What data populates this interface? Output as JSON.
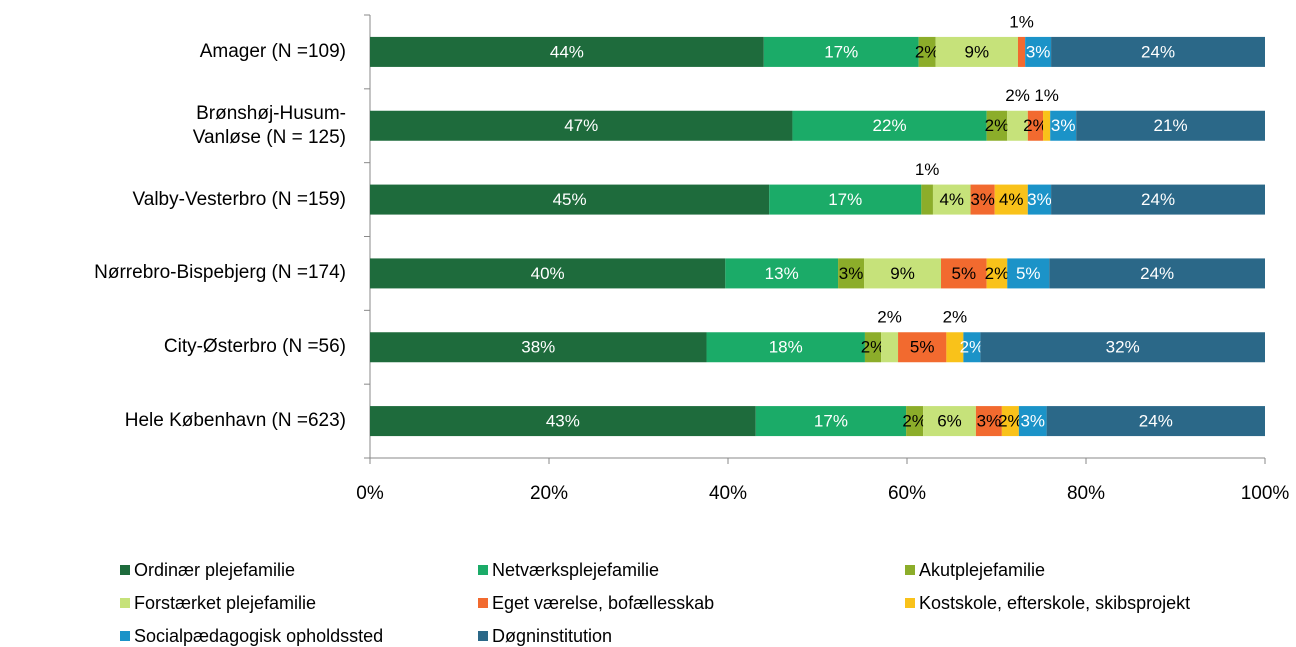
{
  "chart_data": {
    "type": "stacked_bar_horizontal",
    "categories": [
      "Amager (N =109)",
      "Brønshøj-Husum-\nVanløse (N = 125)",
      "Valby-Vesterbro (N =159)",
      "Nørrebro-Bispebjerg (N =174)",
      "City-Østerbro (N =56)",
      "Hele København (N =623)"
    ],
    "series": [
      {
        "name": "Ordinær plejefamilie",
        "color": "#1e6b3c",
        "label_color": "#ffffff",
        "values": [
          44.0,
          47.2,
          44.6,
          39.7,
          37.6,
          43.1
        ],
        "value_labels": [
          "44%",
          "47%",
          "45%",
          "40%",
          "38%",
          "43%"
        ]
      },
      {
        "name": "Netværksplejefamilie",
        "color": "#1bab68",
        "label_color": "#ffffff",
        "values": [
          17.3,
          21.7,
          17.0,
          12.6,
          17.7,
          16.8
        ],
        "value_labels": [
          "17%",
          "22%",
          "17%",
          "13%",
          "18%",
          "17%"
        ]
      },
      {
        "name": "Akutplejefamilie",
        "color": "#8cad2a",
        "label_color": "#000000",
        "values": [
          1.9,
          2.3,
          1.3,
          2.9,
          1.8,
          1.9
        ],
        "value_labels": [
          "2%",
          "2%",
          "1%",
          "3%",
          "2%",
          "2%"
        ]
      },
      {
        "name": "Forstærket plejefamilie",
        "color": "#c6e27a",
        "label_color": "#000000",
        "values": [
          9.2,
          2.3,
          4.2,
          8.6,
          1.9,
          5.9
        ],
        "value_labels": [
          "9%",
          "2%",
          "4%",
          "9%",
          "2%",
          "6%"
        ]
      },
      {
        "name": "Eget værelse, bofællesskab",
        "color": "#f26a2f",
        "label_color": "#000000",
        "values": [
          0.8,
          1.7,
          2.7,
          5.1,
          5.4,
          2.9
        ],
        "value_labels": [
          "1%",
          "2%",
          "3%",
          "5%",
          "5%",
          "3%"
        ]
      },
      {
        "name": "Kostskole, efterskole, skibsprojekt",
        "color": "#f9c21a",
        "label_color": "#000000",
        "values": [
          0,
          0.8,
          3.7,
          2.3,
          1.9,
          1.9
        ],
        "value_labels": [
          null,
          "1%",
          "4%",
          "2%",
          "2%",
          "2%"
        ]
      },
      {
        "name": "Socialpædagogisk opholdssted",
        "color": "#1b93c8",
        "label_color": "#ffffff",
        "values": [
          2.9,
          2.9,
          2.6,
          4.7,
          1.9,
          3.1
        ],
        "value_labels": [
          "3%",
          "3%",
          "3%",
          "5%",
          "2%",
          "3%"
        ]
      },
      {
        "name": "Døgninstitution",
        "color": "#2b6888",
        "label_color": "#ffffff",
        "values": [
          23.9,
          21.1,
          23.9,
          24.1,
          31.8,
          24.4
        ],
        "value_labels": [
          "24%",
          "21%",
          "24%",
          "24%",
          "32%",
          "24%"
        ]
      }
    ],
    "xlim": [
      0,
      100
    ],
    "xticks": [
      {
        "value": 0,
        "label": "0%"
      },
      {
        "value": 20,
        "label": "20%"
      },
      {
        "value": 40,
        "label": "40%"
      },
      {
        "value": 60,
        "label": "60%"
      },
      {
        "value": 80,
        "label": "80%"
      },
      {
        "value": 100,
        "label": "100%"
      }
    ],
    "legend": "bottom"
  }
}
